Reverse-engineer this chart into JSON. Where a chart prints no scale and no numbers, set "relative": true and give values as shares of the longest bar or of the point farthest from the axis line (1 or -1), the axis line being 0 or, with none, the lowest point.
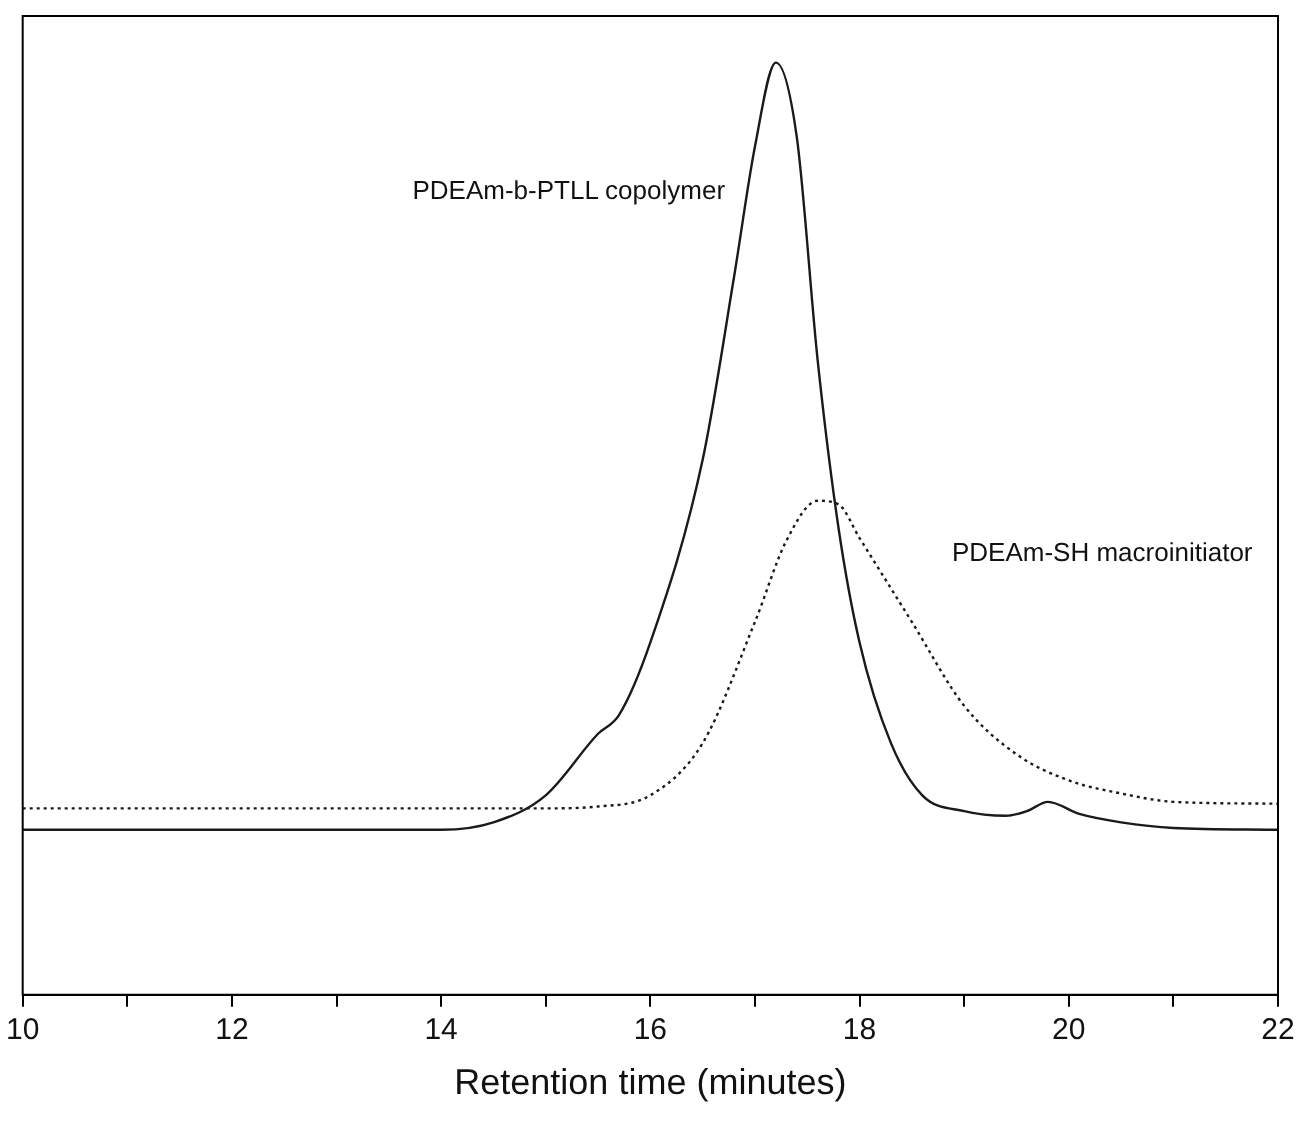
{
  "chart_data": {
    "type": "line",
    "relative": true,
    "xlabel": "Retention time (minutes)",
    "xlim": [
      10,
      22
    ],
    "xticks": [
      10,
      {
        "value": 11,
        "label": null
      },
      12,
      {
        "value": 13,
        "label": null
      },
      14,
      {
        "value": 15,
        "label": null
      },
      16,
      {
        "value": 17,
        "label": null
      },
      18,
      {
        "value": 19,
        "label": null
      },
      20,
      {
        "value": 21,
        "label": null
      },
      22
    ],
    "legend": false,
    "grid": false,
    "marker": "none",
    "tick_labels": "x",
    "series": [
      {
        "color": "#1a1a1a",
        "line_style": "solid",
        "x": [
          10,
          14,
          14.5,
          15,
          15.5,
          15.7,
          16,
          16.5,
          16.8,
          17,
          17.2,
          17.4,
          17.6,
          17.8,
          18,
          18.3,
          18.6,
          19,
          19.4,
          19.6,
          19.8,
          20.1,
          20.5,
          21,
          22
        ],
        "values": [
          0.177,
          0.177,
          0.185,
          0.214,
          0.28,
          0.3,
          0.378,
          0.574,
          0.77,
          0.91,
          1,
          0.92,
          0.68,
          0.5,
          0.378,
          0.27,
          0.214,
          0.197,
          0.192,
          0.197,
          0.207,
          0.194,
          0.185,
          0.179,
          0.177
        ]
      },
      {
        "color": "#1a1a1a",
        "line_style": "dotted",
        "x": [
          10,
          15,
          15.5,
          16,
          16.5,
          17,
          17.3,
          17.6,
          17.8,
          18,
          18.5,
          19,
          19.5,
          20,
          20.5,
          21,
          22
        ],
        "values": [
          0.2,
          0.2,
          0.202,
          0.214,
          0.27,
          0.4,
          0.487,
          0.53,
          0.526,
          0.49,
          0.4,
          0.31,
          0.258,
          0.23,
          0.216,
          0.207,
          0.205
        ]
      }
    ],
    "annotations": [
      "PDEAm-b-PTLL copolymer",
      "PDEAm-SH macroinitiator"
    ]
  }
}
